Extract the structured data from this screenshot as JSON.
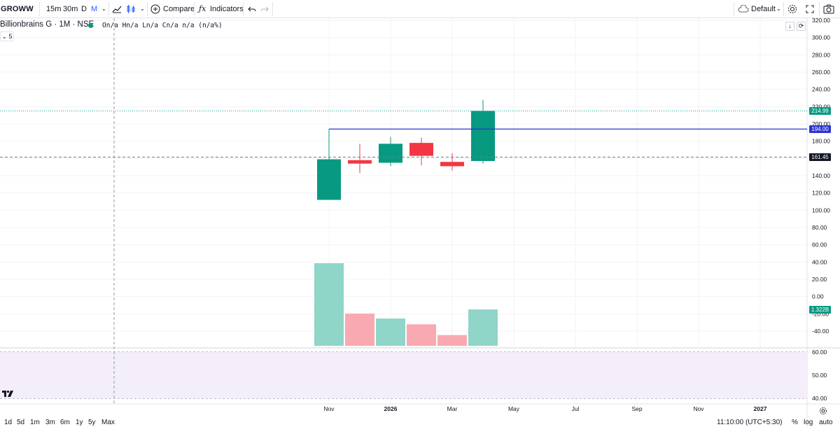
{
  "toolbar": {
    "logo": "GROWW",
    "intervals": [
      "15m",
      "30m",
      "D",
      "M"
    ],
    "active_interval": "M",
    "compare_label": "Compare",
    "indicators_label": "Indicators",
    "layout_label": "Default"
  },
  "legend": {
    "symbol": "Billionbrains G · 1M · NSE",
    "ohlc": "On/a Hn/a Ln/a Cn/a n/a (n/a%)",
    "indicator_count": "5"
  },
  "price_tags": {
    "last_price": "214.99",
    "hline_price": "194.00",
    "crosshair_price": "161.45",
    "volume": "1.322B"
  },
  "bottombar": {
    "ranges": [
      "1d",
      "5d",
      "1m",
      "3m",
      "6m",
      "1y",
      "5y",
      "Max"
    ],
    "time": "11:10:00 (UTC+5:30)",
    "percent": "%",
    "log": "log",
    "auto": "auto"
  },
  "chart_data": {
    "type": "candlestick",
    "interval": "1M",
    "candles": [
      {
        "date": "2025-11",
        "open": 112,
        "high": 194,
        "low": 112,
        "close": 159
      },
      {
        "date": "2025-12",
        "open": 158,
        "high": 177,
        "low": 143,
        "close": 154
      },
      {
        "date": "2026-01",
        "open": 155,
        "high": 185,
        "low": 151,
        "close": 177
      },
      {
        "date": "2026-02",
        "open": 178,
        "high": 184,
        "low": 152,
        "close": 163
      },
      {
        "date": "2026-03",
        "open": 156,
        "high": 166,
        "low": 146,
        "close": 151
      },
      {
        "date": "2026-04",
        "open": 157,
        "high": 228,
        "low": 154,
        "close": 215
      }
    ],
    "volume_relative": [
      1.0,
      0.39,
      0.33,
      0.26,
      0.13,
      0.44
    ],
    "x_tick_labels": [
      {
        "label": "Nov",
        "date": "2025-11"
      },
      {
        "label": "2026",
        "date": "2026-01"
      },
      {
        "label": "Mar",
        "date": "2026-03"
      },
      {
        "label": "May",
        "date": "2026-05"
      },
      {
        "label": "Jul",
        "date": "2026-07"
      },
      {
        "label": "Sep",
        "date": "2026-09"
      },
      {
        "label": "Nov",
        "date": "2026-11"
      },
      {
        "label": "2027",
        "date": "2027-01"
      }
    ],
    "y_ticks": [
      "320.00",
      "300.00",
      "280.00",
      "260.00",
      "240.00",
      "220.00",
      "200.00",
      "180.00",
      "160.00",
      "140.00",
      "120.00",
      "100.00",
      "80.00",
      "60.00",
      "40.00",
      "20.00",
      "0.00",
      "-20.00",
      "-40.00"
    ],
    "ylim": [
      -40,
      320
    ],
    "horizontal_line": 194.0,
    "crosshair_price": 161.45,
    "last_price": 214.99,
    "lower_pane": {
      "y_ticks": [
        "60.00",
        "50.00",
        "40.00"
      ],
      "ylim": [
        40,
        60
      ]
    },
    "colors": {
      "up": "#089981",
      "down": "#f23645",
      "up_volume": "#8fd5c8",
      "down_volume": "#f8a9b1",
      "hline": "#2a35d4",
      "pane_bg": "#f3eef9"
    }
  }
}
